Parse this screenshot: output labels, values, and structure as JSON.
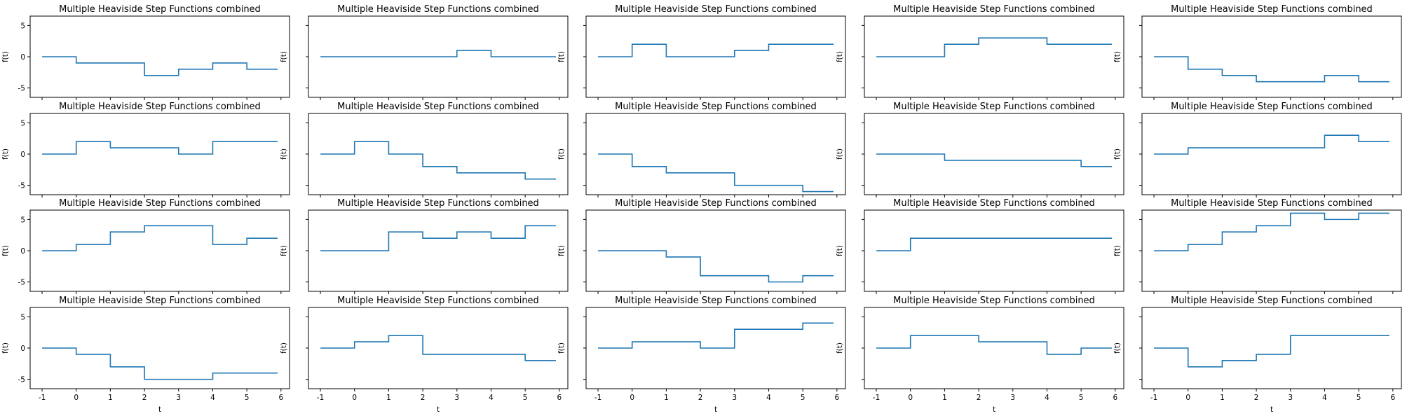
{
  "chart_data": [
    {
      "type": "line",
      "drawstyle": "steps-post",
      "title": "Multiple Heaviside Step Functions combined",
      "xlabel": "",
      "ylabel": "f(t)",
      "xlim": [
        -1.35,
        6.25
      ],
      "ylim": [
        -6.5,
        6.5
      ],
      "xticks": [
        -1,
        0,
        1,
        2,
        3,
        4,
        5,
        6
      ],
      "yticks": [
        -5,
        0,
        5
      ],
      "x": [
        -1,
        0,
        1,
        2,
        3,
        4,
        5,
        5.9
      ],
      "values": [
        0,
        -1,
        -1,
        -3,
        -2,
        -1,
        -2,
        -2
      ]
    },
    {
      "type": "line",
      "drawstyle": "steps-post",
      "title": "Multiple Heaviside Step Functions combined",
      "xlabel": "",
      "ylabel": "f(t)",
      "xlim": [
        -1.35,
        6.25
      ],
      "ylim": [
        -6.5,
        6.5
      ],
      "xticks": [
        -1,
        0,
        1,
        2,
        3,
        4,
        5,
        6
      ],
      "yticks": [
        -5,
        0,
        5
      ],
      "x": [
        -1,
        0,
        1,
        2,
        3,
        4,
        5,
        5.9
      ],
      "values": [
        0,
        0,
        0,
        0,
        1,
        0,
        0,
        0
      ]
    },
    {
      "type": "line",
      "drawstyle": "steps-post",
      "title": "Multiple Heaviside Step Functions combined",
      "xlabel": "",
      "ylabel": "f(t)",
      "xlim": [
        -1.35,
        6.25
      ],
      "ylim": [
        -6.5,
        6.5
      ],
      "xticks": [
        -1,
        0,
        1,
        2,
        3,
        4,
        5,
        6
      ],
      "yticks": [
        -5,
        0,
        5
      ],
      "x": [
        -1,
        0,
        1,
        2,
        3,
        4,
        5,
        5.9
      ],
      "values": [
        0,
        2,
        0,
        0,
        1,
        2,
        2,
        2
      ]
    },
    {
      "type": "line",
      "drawstyle": "steps-post",
      "title": "Multiple Heaviside Step Functions combined",
      "xlabel": "",
      "ylabel": "f(t)",
      "xlim": [
        -1.35,
        6.25
      ],
      "ylim": [
        -6.5,
        6.5
      ],
      "xticks": [
        -1,
        0,
        1,
        2,
        3,
        4,
        5,
        6
      ],
      "yticks": [
        -5,
        0,
        5
      ],
      "x": [
        -1,
        0,
        1,
        2,
        3,
        4,
        5,
        5.9
      ],
      "values": [
        0,
        0,
        2,
        3,
        3,
        2,
        2,
        2
      ]
    },
    {
      "type": "line",
      "drawstyle": "steps-post",
      "title": "Multiple Heaviside Step Functions combined",
      "xlabel": "",
      "ylabel": "f(t)",
      "xlim": [
        -1.35,
        6.25
      ],
      "ylim": [
        -6.5,
        6.5
      ],
      "xticks": [
        -1,
        0,
        1,
        2,
        3,
        4,
        5,
        6
      ],
      "yticks": [
        -5,
        0,
        5
      ],
      "x": [
        -1,
        0,
        1,
        2,
        3,
        4,
        5,
        5.9
      ],
      "values": [
        0,
        -2,
        -3,
        -4,
        -4,
        -3,
        -4,
        -4
      ]
    },
    {
      "type": "line",
      "drawstyle": "steps-post",
      "title": "Multiple Heaviside Step Functions combined",
      "xlabel": "",
      "ylabel": "f(t)",
      "xlim": [
        -1.35,
        6.25
      ],
      "ylim": [
        -6.5,
        6.5
      ],
      "xticks": [
        -1,
        0,
        1,
        2,
        3,
        4,
        5,
        6
      ],
      "yticks": [
        -5,
        0,
        5
      ],
      "x": [
        -1,
        0,
        1,
        2,
        3,
        4,
        5,
        5.9
      ],
      "values": [
        0,
        2,
        1,
        1,
        0,
        2,
        2,
        2
      ]
    },
    {
      "type": "line",
      "drawstyle": "steps-post",
      "title": "Multiple Heaviside Step Functions combined",
      "xlabel": "",
      "ylabel": "f(t)",
      "xlim": [
        -1.35,
        6.25
      ],
      "ylim": [
        -6.5,
        6.5
      ],
      "xticks": [
        -1,
        0,
        1,
        2,
        3,
        4,
        5,
        6
      ],
      "yticks": [
        -5,
        0,
        5
      ],
      "x": [
        -1,
        0,
        1,
        2,
        3,
        4,
        5,
        5.9
      ],
      "values": [
        0,
        2,
        0,
        -2,
        -3,
        -3,
        -4,
        -4
      ]
    },
    {
      "type": "line",
      "drawstyle": "steps-post",
      "title": "Multiple Heaviside Step Functions combined",
      "xlabel": "",
      "ylabel": "f(t)",
      "xlim": [
        -1.35,
        6.25
      ],
      "ylim": [
        -6.5,
        6.5
      ],
      "xticks": [
        -1,
        0,
        1,
        2,
        3,
        4,
        5,
        6
      ],
      "yticks": [
        -5,
        0,
        5
      ],
      "x": [
        -1,
        0,
        1,
        2,
        3,
        4,
        5,
        5.9
      ],
      "values": [
        0,
        -2,
        -3,
        -3,
        -5,
        -5,
        -6,
        -6
      ]
    },
    {
      "type": "line",
      "drawstyle": "steps-post",
      "title": "Multiple Heaviside Step Functions combined",
      "xlabel": "",
      "ylabel": "f(t)",
      "xlim": [
        -1.35,
        6.25
      ],
      "ylim": [
        -6.5,
        6.5
      ],
      "xticks": [
        -1,
        0,
        1,
        2,
        3,
        4,
        5,
        6
      ],
      "yticks": [
        -5,
        0,
        5
      ],
      "x": [
        -1,
        0,
        1,
        2,
        3,
        4,
        5,
        5.9
      ],
      "values": [
        0,
        0,
        -1,
        -1,
        -1,
        -1,
        -2,
        -2
      ]
    },
    {
      "type": "line",
      "drawstyle": "steps-post",
      "title": "Multiple Heaviside Step Functions combined",
      "xlabel": "",
      "ylabel": "f(t)",
      "xlim": [
        -1.35,
        6.25
      ],
      "ylim": [
        -6.5,
        6.5
      ],
      "xticks": [
        -1,
        0,
        1,
        2,
        3,
        4,
        5,
        6
      ],
      "yticks": [
        -5,
        0,
        5
      ],
      "x": [
        -1,
        0,
        1,
        2,
        3,
        4,
        5,
        5.9
      ],
      "values": [
        0,
        1,
        1,
        1,
        1,
        3,
        2,
        2
      ]
    },
    {
      "type": "line",
      "drawstyle": "steps-post",
      "title": "Multiple Heaviside Step Functions combined",
      "xlabel": "",
      "ylabel": "f(t)",
      "xlim": [
        -1.35,
        6.25
      ],
      "ylim": [
        -6.5,
        6.5
      ],
      "xticks": [
        -1,
        0,
        1,
        2,
        3,
        4,
        5,
        6
      ],
      "yticks": [
        -5,
        0,
        5
      ],
      "x": [
        -1,
        0,
        1,
        2,
        3,
        4,
        5,
        5.9
      ],
      "values": [
        0,
        1,
        3,
        4,
        4,
        1,
        2,
        2
      ]
    },
    {
      "type": "line",
      "drawstyle": "steps-post",
      "title": "Multiple Heaviside Step Functions combined",
      "xlabel": "",
      "ylabel": "f(t)",
      "xlim": [
        -1.35,
        6.25
      ],
      "ylim": [
        -6.5,
        6.5
      ],
      "xticks": [
        -1,
        0,
        1,
        2,
        3,
        4,
        5,
        6
      ],
      "yticks": [
        -5,
        0,
        5
      ],
      "x": [
        -1,
        0,
        1,
        2,
        3,
        4,
        5,
        5.9
      ],
      "values": [
        0,
        0,
        3,
        2,
        3,
        2,
        4,
        4
      ]
    },
    {
      "type": "line",
      "drawstyle": "steps-post",
      "title": "Multiple Heaviside Step Functions combined",
      "xlabel": "",
      "ylabel": "f(t)",
      "xlim": [
        -1.35,
        6.25
      ],
      "ylim": [
        -6.5,
        6.5
      ],
      "xticks": [
        -1,
        0,
        1,
        2,
        3,
        4,
        5,
        6
      ],
      "yticks": [
        -5,
        0,
        5
      ],
      "x": [
        -1,
        0,
        1,
        2,
        3,
        4,
        5,
        5.9
      ],
      "values": [
        0,
        0,
        -1,
        -4,
        -4,
        -5,
        -4,
        -4
      ]
    },
    {
      "type": "line",
      "drawstyle": "steps-post",
      "title": "Multiple Heaviside Step Functions combined",
      "xlabel": "",
      "ylabel": "f(t)",
      "xlim": [
        -1.35,
        6.25
      ],
      "ylim": [
        -6.5,
        6.5
      ],
      "xticks": [
        -1,
        0,
        1,
        2,
        3,
        4,
        5,
        6
      ],
      "yticks": [
        -5,
        0,
        5
      ],
      "x": [
        -1,
        0,
        1,
        2,
        3,
        4,
        5,
        5.9
      ],
      "values": [
        0,
        2,
        2,
        2,
        2,
        2,
        2,
        2
      ]
    },
    {
      "type": "line",
      "drawstyle": "steps-post",
      "title": "Multiple Heaviside Step Functions combined",
      "xlabel": "",
      "ylabel": "f(t)",
      "xlim": [
        -1.35,
        6.25
      ],
      "ylim": [
        -6.5,
        6.5
      ],
      "xticks": [
        -1,
        0,
        1,
        2,
        3,
        4,
        5,
        6
      ],
      "yticks": [
        -5,
        0,
        5
      ],
      "x": [
        -1,
        0,
        1,
        2,
        3,
        4,
        5,
        5.9
      ],
      "values": [
        0,
        1,
        3,
        4,
        6,
        5,
        6,
        6
      ]
    },
    {
      "type": "line",
      "drawstyle": "steps-post",
      "title": "Multiple Heaviside Step Functions combined",
      "xlabel": "t",
      "ylabel": "f(t)",
      "xlim": [
        -1.35,
        6.25
      ],
      "ylim": [
        -6.5,
        6.5
      ],
      "xticks": [
        -1,
        0,
        1,
        2,
        3,
        4,
        5,
        6
      ],
      "yticks": [
        -5,
        0,
        5
      ],
      "x": [
        -1,
        0,
        1,
        2,
        3,
        4,
        5,
        5.9
      ],
      "values": [
        0,
        -1,
        -3,
        -5,
        -5,
        -4,
        -4,
        -4
      ]
    },
    {
      "type": "line",
      "drawstyle": "steps-post",
      "title": "Multiple Heaviside Step Functions combined",
      "xlabel": "t",
      "ylabel": "f(t)",
      "xlim": [
        -1.35,
        6.25
      ],
      "ylim": [
        -6.5,
        6.5
      ],
      "xticks": [
        -1,
        0,
        1,
        2,
        3,
        4,
        5,
        6
      ],
      "yticks": [
        -5,
        0,
        5
      ],
      "x": [
        -1,
        0,
        1,
        2,
        3,
        4,
        5,
        5.9
      ],
      "values": [
        0,
        1,
        2,
        -1,
        -1,
        -1,
        -2,
        -2
      ]
    },
    {
      "type": "line",
      "drawstyle": "steps-post",
      "title": "Multiple Heaviside Step Functions combined",
      "xlabel": "t",
      "ylabel": "f(t)",
      "xlim": [
        -1.35,
        6.25
      ],
      "ylim": [
        -6.5,
        6.5
      ],
      "xticks": [
        -1,
        0,
        1,
        2,
        3,
        4,
        5,
        6
      ],
      "yticks": [
        -5,
        0,
        5
      ],
      "x": [
        -1,
        0,
        1,
        2,
        3,
        4,
        5,
        5.9
      ],
      "values": [
        0,
        1,
        1,
        0,
        3,
        3,
        4,
        4
      ]
    },
    {
      "type": "line",
      "drawstyle": "steps-post",
      "title": "Multiple Heaviside Step Functions combined",
      "xlabel": "t",
      "ylabel": "f(t)",
      "xlim": [
        -1.35,
        6.25
      ],
      "ylim": [
        -6.5,
        6.5
      ],
      "xticks": [
        -1,
        0,
        1,
        2,
        3,
        4,
        5,
        6
      ],
      "yticks": [
        -5,
        0,
        5
      ],
      "x": [
        -1,
        0,
        1,
        2,
        3,
        4,
        5,
        5.9
      ],
      "values": [
        0,
        2,
        2,
        1,
        1,
        -1,
        0,
        0
      ]
    },
    {
      "type": "line",
      "drawstyle": "steps-post",
      "title": "Multiple Heaviside Step Functions combined",
      "xlabel": "t",
      "ylabel": "f(t)",
      "xlim": [
        -1.35,
        6.25
      ],
      "ylim": [
        -6.5,
        6.5
      ],
      "xticks": [
        -1,
        0,
        1,
        2,
        3,
        4,
        5,
        6
      ],
      "yticks": [
        -5,
        0,
        5
      ],
      "x": [
        -1,
        0,
        1,
        2,
        3,
        4,
        5,
        5.9
      ],
      "values": [
        0,
        -3,
        -2,
        -1,
        2,
        2,
        2,
        2
      ]
    }
  ],
  "colors": {
    "series": "#1f77b4",
    "frame": "#000000",
    "background": "#ffffff"
  },
  "layout_words": {
    "grid": "off",
    "legend": "none",
    "arrangement": "4 rows by 5 columns, shared x and y axes"
  }
}
